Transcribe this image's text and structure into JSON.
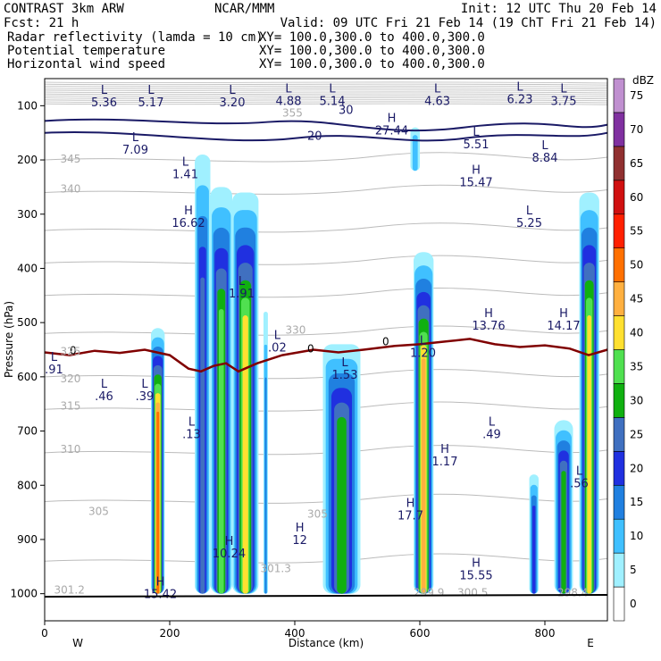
{
  "header": {
    "model": "CONTRAST  3km ARW",
    "center": "NCAR/MMM",
    "init": "Init: 12 UTC Thu 20 Feb 14",
    "fcst": "Fcst:   21 h",
    "valid": "Valid: 09 UTC Fri 21 Feb 14 (19 ChT Fri 21 Feb 14)",
    "fields": [
      {
        "name": "Radar reflectivity (lamda = 10 cm)",
        "xy": "XY= 100.0,300.0 to 400.0,300.0",
        "color": "#000000"
      },
      {
        "name": "Potential temperature",
        "xy": "XY= 100.0,300.0 to 400.0,300.0",
        "color": "#bbbbbb"
      },
      {
        "name": "Horizontal wind speed",
        "xy": "XY= 100.0,300.0 to 400.0,300.0",
        "color": "#1a1a66"
      }
    ]
  },
  "chart_data": {
    "type": "heatmap",
    "title": "",
    "xlabel": "Distance (km)",
    "ylabel": "Pressure (hPa)",
    "xlim": [
      0,
      900
    ],
    "ylim": [
      1050,
      50
    ],
    "x_ticks": [
      0,
      200,
      400,
      600,
      800
    ],
    "y_ticks": [
      100,
      200,
      300,
      400,
      500,
      600,
      700,
      800,
      900,
      1000
    ],
    "endpoints": {
      "left": "W",
      "right": "E"
    },
    "colorbar": {
      "unit": "dBZ",
      "levels": [
        0,
        5,
        10,
        15,
        20,
        25,
        30,
        35,
        40,
        45,
        50,
        55,
        60,
        65,
        70,
        75
      ],
      "colors": [
        "#ffffff",
        "#a0f0ff",
        "#40c0ff",
        "#2080e0",
        "#2030e0",
        "#4070c0",
        "#10b010",
        "#50e050",
        "#ffe030",
        "#ffb040",
        "#ff7000",
        "#ff2000",
        "#d01010",
        "#903030",
        "#8030a0",
        "#c090d0"
      ]
    },
    "reflectivity_cells": [
      {
        "x0": 170,
        "x1": 192,
        "ptop": 510,
        "pbot": 1000,
        "peak": 50
      },
      {
        "x0": 240,
        "x1": 265,
        "ptop": 190,
        "pbot": 1000,
        "peak": 25
      },
      {
        "x0": 265,
        "x1": 300,
        "ptop": 250,
        "pbot": 1000,
        "peak": 35
      },
      {
        "x0": 300,
        "x1": 342,
        "ptop": 260,
        "pbot": 1000,
        "peak": 40
      },
      {
        "x0": 350,
        "x1": 357,
        "ptop": 480,
        "pbot": 1000,
        "peak": 15
      },
      {
        "x0": 445,
        "x1": 505,
        "ptop": 540,
        "pbot": 1000,
        "peak": 30
      },
      {
        "x0": 590,
        "x1": 622,
        "ptop": 370,
        "pbot": 1000,
        "peak": 45
      },
      {
        "x0": 775,
        "x1": 790,
        "ptop": 780,
        "pbot": 1000,
        "peak": 20
      },
      {
        "x0": 815,
        "x1": 845,
        "ptop": 680,
        "pbot": 1000,
        "peak": 30
      },
      {
        "x0": 855,
        "x1": 887,
        "ptop": 260,
        "pbot": 1000,
        "peak": 40
      },
      {
        "x0": 585,
        "x1": 600,
        "ptop": 140,
        "pbot": 220,
        "peak": 10
      }
    ],
    "wind_contours": [
      {
        "label": "20",
        "x": 420,
        "p": 163
      },
      {
        "label": "30",
        "x": 470,
        "p": 115
      }
    ],
    "theta_labels": [
      {
        "label": "355",
        "x": 380,
        "p": 120
      },
      {
        "label": "345",
        "x": 25,
        "p": 205
      },
      {
        "label": "340",
        "x": 25,
        "p": 260
      },
      {
        "label": "330",
        "x": 385,
        "p": 520
      },
      {
        "label": "325",
        "x": 25,
        "p": 560
      },
      {
        "label": "320",
        "x": 25,
        "p": 610
      },
      {
        "label": "315",
        "x": 25,
        "p": 660
      },
      {
        "label": "310",
        "x": 25,
        "p": 740
      },
      {
        "label": "305",
        "x": 70,
        "p": 855
      },
      {
        "label": "305",
        "x": 420,
        "p": 860
      },
      {
        "label": "301.3",
        "x": 345,
        "p": 960
      },
      {
        "label": "301.2",
        "x": 15,
        "p": 1000
      },
      {
        "label": "299.9",
        "x": 590,
        "p": 1005
      },
      {
        "label": "300.5",
        "x": 660,
        "p": 1005
      },
      {
        "label": "298.4",
        "x": 820,
        "p": 1005
      }
    ],
    "extrema": [
      {
        "type": "L",
        "value": "5.36",
        "x": 95,
        "p": 98
      },
      {
        "type": "L",
        "value": "5.17",
        "x": 170,
        "p": 98
      },
      {
        "type": "L",
        "value": "3.20",
        "x": 300,
        "p": 98
      },
      {
        "type": "L",
        "value": "4.88",
        "x": 390,
        "p": 95
      },
      {
        "type": "L",
        "value": "5.14",
        "x": 460,
        "p": 95
      },
      {
        "type": "L",
        "value": "4.63",
        "x": 628,
        "p": 95
      },
      {
        "type": "L",
        "value": "6.23",
        "x": 760,
        "p": 92
      },
      {
        "type": "L",
        "value": "3.75",
        "x": 830,
        "p": 95
      },
      {
        "type": "H",
        "value": "27.44",
        "x": 555,
        "p": 150
      },
      {
        "type": "L",
        "value": "7.09",
        "x": 145,
        "p": 185
      },
      {
        "type": "L",
        "value": "5.51",
        "x": 690,
        "p": 175
      },
      {
        "type": "L",
        "value": "8.84",
        "x": 800,
        "p": 200
      },
      {
        "type": "L",
        "value": "1.41",
        "x": 225,
        "p": 230
      },
      {
        "type": "H",
        "value": "15.47",
        "x": 690,
        "p": 245
      },
      {
        "type": "L",
        "value": "5.25",
        "x": 775,
        "p": 320
      },
      {
        "type": "H",
        "value": "16.62",
        "x": 230,
        "p": 320
      },
      {
        "type": "L",
        "value": "1.91",
        "x": 315,
        "p": 450
      },
      {
        "type": "H",
        "value": "13.76",
        "x": 710,
        "p": 510
      },
      {
        "type": "H",
        "value": "14.17",
        "x": 830,
        "p": 510
      },
      {
        "type": "L",
        "value": ".02",
        "x": 372,
        "p": 550
      },
      {
        "type": "L",
        "value": "1.20",
        "x": 605,
        "p": 560
      },
      {
        "type": "L",
        "value": ".91",
        "x": 15,
        "p": 590
      },
      {
        "type": "L",
        "value": "1.53",
        "x": 480,
        "p": 600
      },
      {
        "type": "L",
        "value": ".46",
        "x": 95,
        "p": 640
      },
      {
        "type": "L",
        "value": ".39",
        "x": 160,
        "p": 640
      },
      {
        "type": "L",
        "value": ".13",
        "x": 235,
        "p": 710
      },
      {
        "type": "L",
        "value": ".49",
        "x": 715,
        "p": 710
      },
      {
        "type": "H",
        "value": "1.17",
        "x": 640,
        "p": 760
      },
      {
        "type": "L",
        "value": ".56",
        "x": 855,
        "p": 800
      },
      {
        "type": "H",
        "value": "17.7",
        "x": 585,
        "p": 860
      },
      {
        "type": "H",
        "value": "12",
        "x": 408,
        "p": 905
      },
      {
        "type": "H",
        "value": "10.24",
        "x": 295,
        "p": 930
      },
      {
        "type": "H",
        "value": "15.55",
        "x": 690,
        "p": 970
      },
      {
        "type": "H",
        "value": "15.42",
        "x": 185,
        "p": 1005
      }
    ],
    "freezing_level": {
      "label": "0",
      "points": [
        [
          0,
          555
        ],
        [
          40,
          560
        ],
        [
          80,
          552
        ],
        [
          120,
          556
        ],
        [
          160,
          550
        ],
        [
          200,
          560
        ],
        [
          230,
          585
        ],
        [
          250,
          590
        ],
        [
          270,
          580
        ],
        [
          290,
          575
        ],
        [
          310,
          590
        ],
        [
          340,
          575
        ],
        [
          380,
          560
        ],
        [
          430,
          550
        ],
        [
          470,
          555
        ],
        [
          510,
          550
        ],
        [
          560,
          543
        ],
        [
          600,
          540
        ],
        [
          640,
          535
        ],
        [
          680,
          530
        ],
        [
          720,
          540
        ],
        [
          760,
          545
        ],
        [
          800,
          542
        ],
        [
          840,
          548
        ],
        [
          870,
          560
        ],
        [
          900,
          550
        ]
      ]
    }
  }
}
